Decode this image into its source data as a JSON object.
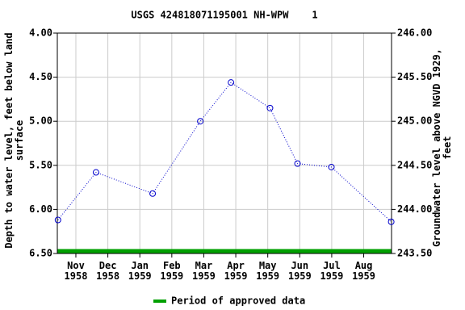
{
  "chart_data": {
    "type": "line",
    "title": "USGS 424818071195001 NH-WPW    1",
    "y_label": "Depth to water level, feet below land surface",
    "y2_label": "Groundwater level above NGVD 1929, feet",
    "x_unit": "months",
    "xlim": [
      -0.58,
      9.87
    ],
    "xticks": [
      {
        "value": 0,
        "label": "Nov\n1958"
      },
      {
        "value": 1,
        "label": "Dec\n1958"
      },
      {
        "value": 2,
        "label": "Jan\n1959"
      },
      {
        "value": 3,
        "label": "Feb\n1959"
      },
      {
        "value": 4,
        "label": "Mar\n1959"
      },
      {
        "value": 5,
        "label": "Apr\n1959"
      },
      {
        "value": 6,
        "label": "May\n1959"
      },
      {
        "value": 7,
        "label": "Jun\n1959"
      },
      {
        "value": 8,
        "label": "Jul\n1959"
      },
      {
        "value": 9,
        "label": "Aug\n1959"
      }
    ],
    "ylim": [
      4.0,
      6.5
    ],
    "y_inverted": true,
    "yticks": [
      {
        "value": 4.0,
        "label": "4.00"
      },
      {
        "value": 4.5,
        "label": "4.50"
      },
      {
        "value": 5.0,
        "label": "5.00"
      },
      {
        "value": 5.5,
        "label": "5.50"
      },
      {
        "value": 6.0,
        "label": "6.00"
      },
      {
        "value": 6.5,
        "label": "6.50"
      }
    ],
    "y2lim": [
      243.5,
      246.0
    ],
    "y2ticks": [
      {
        "value": 243.5,
        "label": "243.50"
      },
      {
        "value": 244.0,
        "label": "244.00"
      },
      {
        "value": 244.5,
        "label": "244.50"
      },
      {
        "value": 245.0,
        "label": "245.00"
      },
      {
        "value": 245.5,
        "label": "245.50"
      },
      {
        "value": 246.0,
        "label": "246.00"
      }
    ],
    "grid": true,
    "series": [
      {
        "color": "#0000cc",
        "x": [
          -0.56,
          0.63,
          2.4,
          3.89,
          4.85,
          6.07,
          6.93,
          7.99,
          9.86
        ],
        "values": [
          6.12,
          5.58,
          5.82,
          5.0,
          4.56,
          4.85,
          5.48,
          5.52,
          6.14
        ]
      }
    ],
    "approved_period": {
      "name": "Period of approved data",
      "color": "#00a000"
    }
  }
}
